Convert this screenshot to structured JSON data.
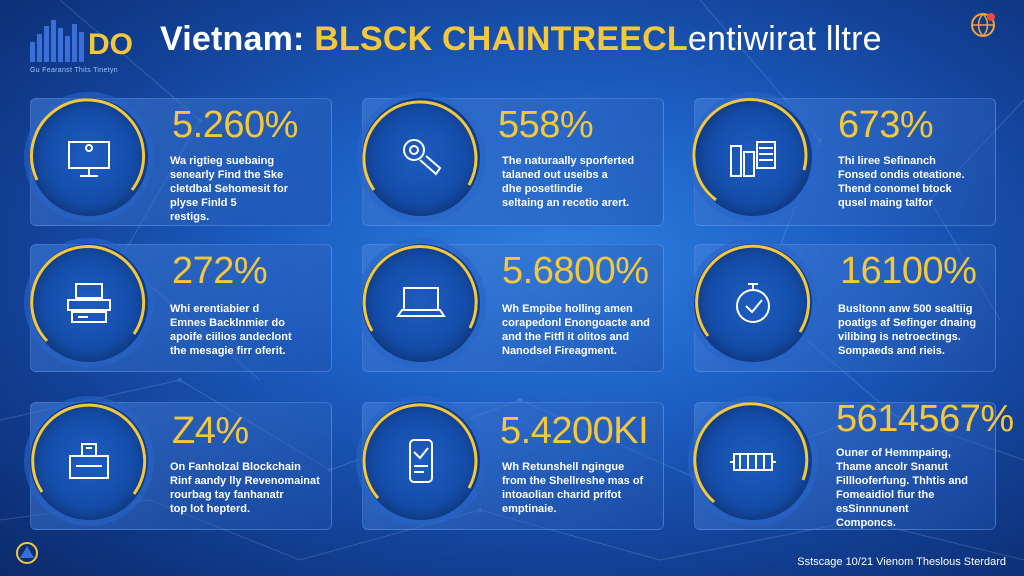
{
  "header": {
    "logo_caption": "Gu Fearanst Thits Tinetyn",
    "title_part1": "Vietnam: ",
    "title_part2": "BLSCK CHAINTREECL",
    "title_part3": "entiwirat lltre"
  },
  "stats": [
    {
      "value": "5.260%",
      "lines": [
        "Wa rigtieg suebaing",
        "senearly Find the Ske",
        "cletdbal Sehomesit for",
        "plyse Finld 5",
        "restigs."
      ],
      "icon": "monitor-icon"
    },
    {
      "value": "558%",
      "lines": [
        "The naturaally sporferted",
        "talaned out useibs a",
        "dhe posetlindie",
        "seltaing an recetio arert."
      ],
      "icon": "gear-hand-icon"
    },
    {
      "value": "673%",
      "lines": [
        "Thi liree Sefinanch",
        "Fonsed ondis oteatione.",
        "Thend conomel btock",
        "qusel maing talfor"
      ],
      "icon": "building-chart-icon"
    },
    {
      "value": "272%",
      "lines": [
        "Whi erentiabier d",
        "Emnes Backlnmier do",
        "apoife ciilios andeclont",
        "the mesagie firr oferit."
      ],
      "icon": "devices-icon"
    },
    {
      "value": "5.6800%",
      "lines": [
        "Wh Empibe holling amen",
        "corapedonl Enongoacte and",
        "and the Fitfl it olitos and",
        "Nanodsel Fireagment."
      ],
      "icon": "laptop-icon"
    },
    {
      "value": "16100%",
      "lines": [
        "Busltonn anw 500 sealtiig",
        "poatigs af Sefinger dnaing",
        "vilibing is netroectings.",
        "Sompaeds and rieis."
      ],
      "icon": "stopwatch-icon"
    },
    {
      "value": "Z4%",
      "lines": [
        "On Fanholzal Blockchain",
        "Rinf aandy lly Revenomainat",
        "rourbag tay fanhanatr",
        "top lot hepterd."
      ],
      "icon": "server-box-icon"
    },
    {
      "value": "5.4200KI",
      "lines": [
        "Wh Retunshell ngingue",
        "from the Shellreshe mas of",
        "intoaolian charid prifot",
        "emptinaie."
      ],
      "icon": "phone-icon"
    },
    {
      "value": "5614567%",
      "lines": [
        "Ouner of Hemmpaing,",
        "Thame ancolr Snanut",
        "Filllooferfung. Thhtis and",
        "Fomeaidiol fiur the",
        "esSinnnunent",
        "Componcs."
      ],
      "icon": "circuit-icon"
    }
  ],
  "footer": {
    "credit": "Sstscage 10/21 Vienom Theslous Sterdard"
  },
  "colors": {
    "accent": "#f5c73a",
    "background": "#1c5fc4",
    "card": "#3a7ad4"
  }
}
